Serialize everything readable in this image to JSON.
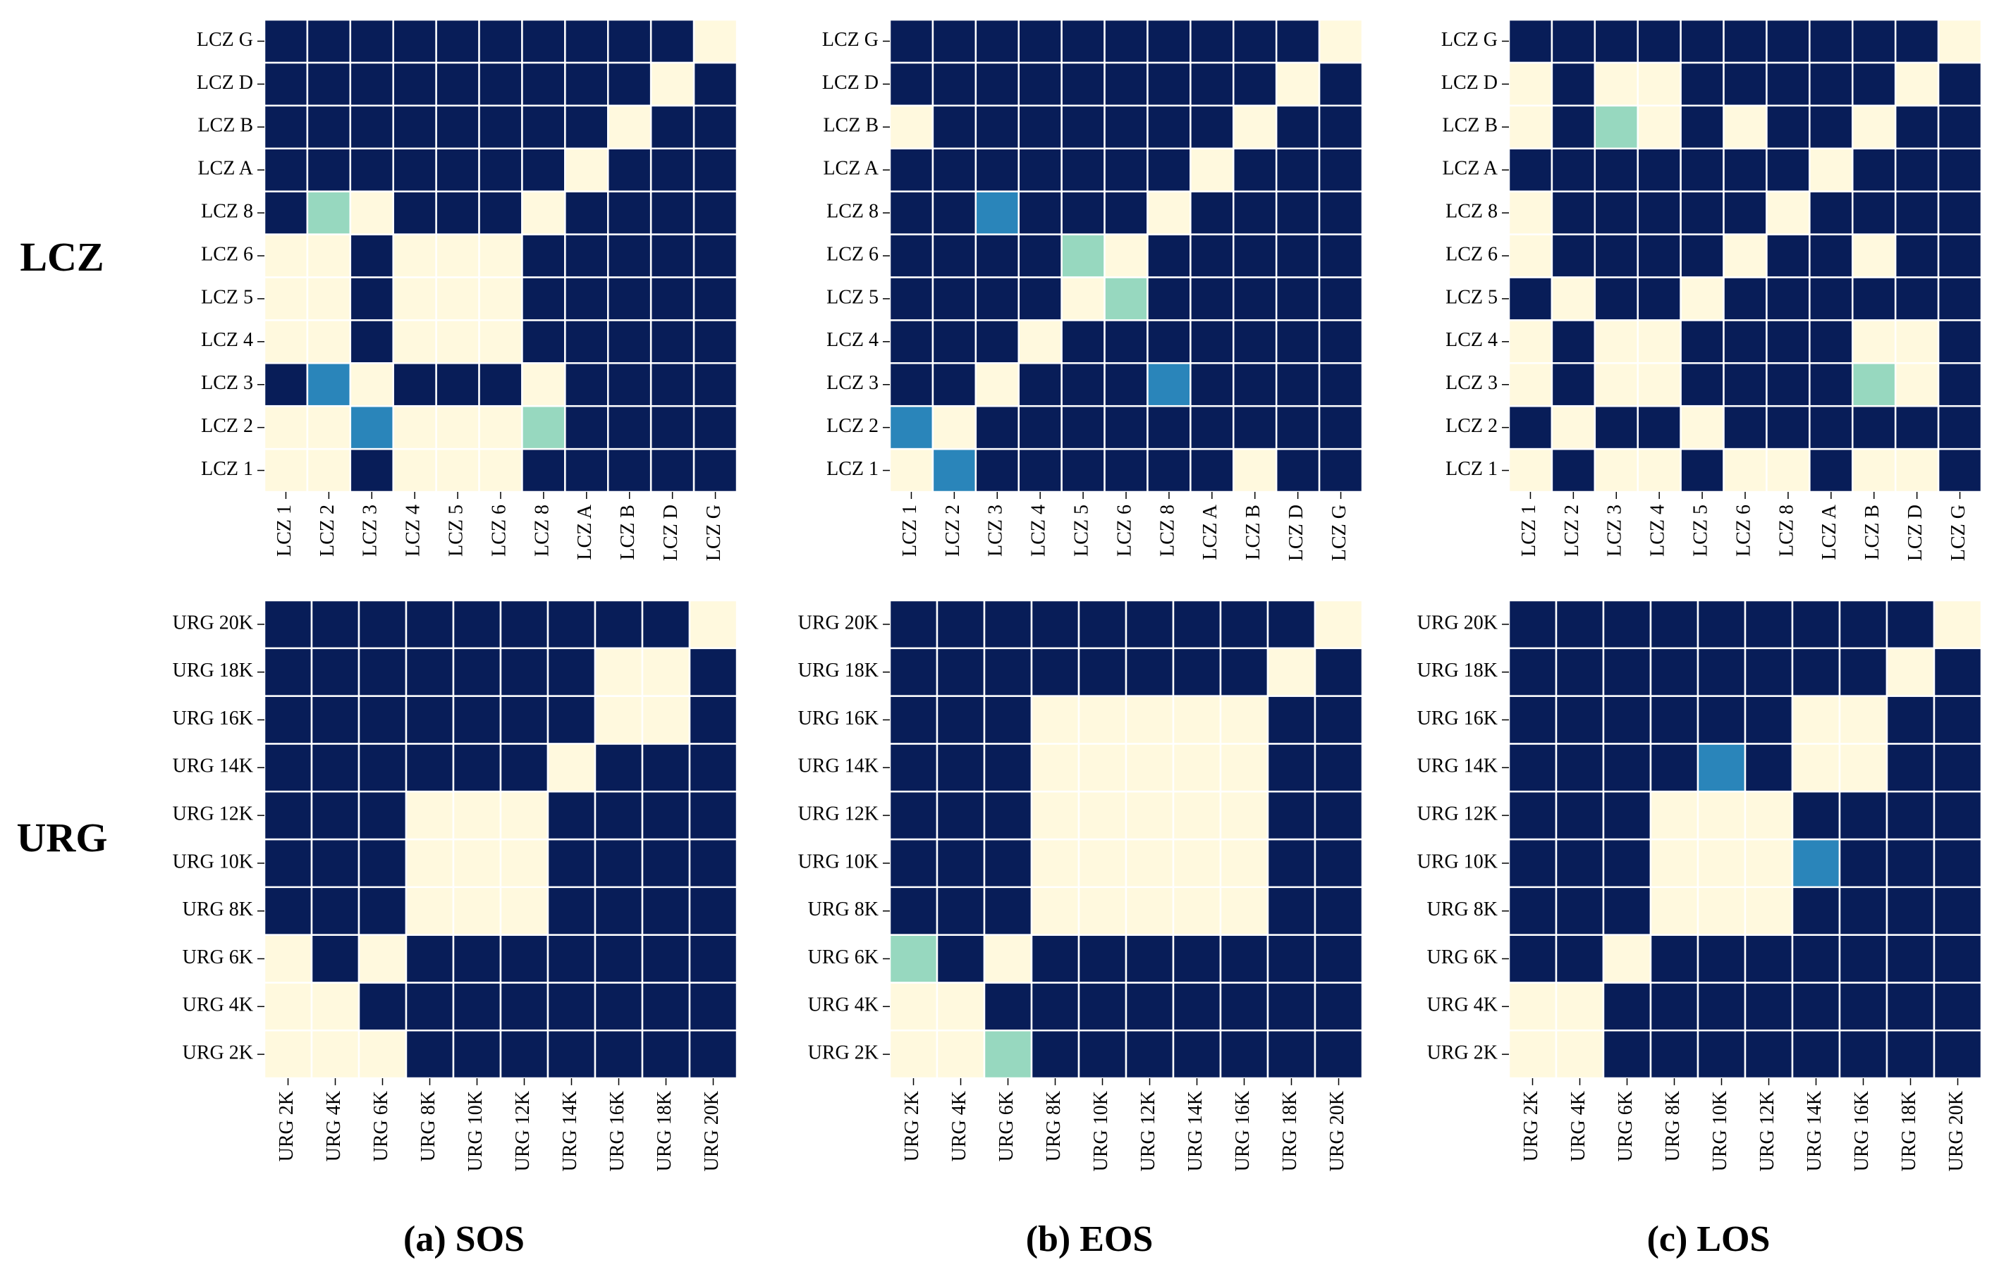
{
  "row_titles": [
    "LCZ",
    "URG"
  ],
  "panel_titles": [
    "(a) SOS",
    "(b) EOS",
    "(c) LOS"
  ],
  "colors": {
    "level_0": "#081d58",
    "level_1": "#2a85ba",
    "level_2": "#97d8bf",
    "level_3": "#fff9de",
    "gridline": "#ffffff"
  },
  "chart_data": [
    {
      "type": "heatmap",
      "group": "LCZ",
      "column": "(a) SOS",
      "x_labels": [
        "LCZ 1",
        "LCZ 2",
        "LCZ 3",
        "LCZ 4",
        "LCZ 5",
        "LCZ 6",
        "LCZ 8",
        "LCZ A",
        "LCZ B",
        "LCZ D",
        "LCZ G"
      ],
      "y_labels": [
        "LCZ 1",
        "LCZ 2",
        "LCZ 3",
        "LCZ 4",
        "LCZ 5",
        "LCZ 6",
        "LCZ 8",
        "LCZ A",
        "LCZ B",
        "LCZ D",
        "LCZ G"
      ],
      "values": [
        [
          3,
          3,
          0,
          3,
          3,
          3,
          0,
          0,
          0,
          0,
          0
        ],
        [
          3,
          3,
          1,
          3,
          3,
          3,
          2,
          0,
          0,
          0,
          0
        ],
        [
          0,
          1,
          3,
          0,
          0,
          0,
          3,
          0,
          0,
          0,
          0
        ],
        [
          3,
          3,
          0,
          3,
          3,
          3,
          0,
          0,
          0,
          0,
          0
        ],
        [
          3,
          3,
          0,
          3,
          3,
          3,
          0,
          0,
          0,
          0,
          0
        ],
        [
          3,
          3,
          0,
          3,
          3,
          3,
          0,
          0,
          0,
          0,
          0
        ],
        [
          0,
          2,
          3,
          0,
          0,
          0,
          3,
          0,
          0,
          0,
          0
        ],
        [
          0,
          0,
          0,
          0,
          0,
          0,
          0,
          3,
          0,
          0,
          0
        ],
        [
          0,
          0,
          0,
          0,
          0,
          0,
          0,
          0,
          3,
          0,
          0
        ],
        [
          0,
          0,
          0,
          0,
          0,
          0,
          0,
          0,
          0,
          3,
          0
        ],
        [
          0,
          0,
          0,
          0,
          0,
          0,
          0,
          0,
          0,
          0,
          3
        ]
      ]
    },
    {
      "type": "heatmap",
      "group": "LCZ",
      "column": "(b) EOS",
      "x_labels": [
        "LCZ 1",
        "LCZ 2",
        "LCZ 3",
        "LCZ 4",
        "LCZ 5",
        "LCZ 6",
        "LCZ 8",
        "LCZ A",
        "LCZ B",
        "LCZ D",
        "LCZ G"
      ],
      "y_labels": [
        "LCZ 1",
        "LCZ 2",
        "LCZ 3",
        "LCZ 4",
        "LCZ 5",
        "LCZ 6",
        "LCZ 8",
        "LCZ A",
        "LCZ B",
        "LCZ D",
        "LCZ G"
      ],
      "values": [
        [
          3,
          1,
          0,
          0,
          0,
          0,
          0,
          0,
          3,
          0,
          0
        ],
        [
          1,
          3,
          0,
          0,
          0,
          0,
          0,
          0,
          0,
          0,
          0
        ],
        [
          0,
          0,
          3,
          0,
          0,
          0,
          1,
          0,
          0,
          0,
          0
        ],
        [
          0,
          0,
          0,
          3,
          0,
          0,
          0,
          0,
          0,
          0,
          0
        ],
        [
          0,
          0,
          0,
          0,
          3,
          2,
          0,
          0,
          0,
          0,
          0
        ],
        [
          0,
          0,
          0,
          0,
          2,
          3,
          0,
          0,
          0,
          0,
          0
        ],
        [
          0,
          0,
          1,
          0,
          0,
          0,
          3,
          0,
          0,
          0,
          0
        ],
        [
          0,
          0,
          0,
          0,
          0,
          0,
          0,
          3,
          0,
          0,
          0
        ],
        [
          3,
          0,
          0,
          0,
          0,
          0,
          0,
          0,
          3,
          0,
          0
        ],
        [
          0,
          0,
          0,
          0,
          0,
          0,
          0,
          0,
          0,
          3,
          0
        ],
        [
          0,
          0,
          0,
          0,
          0,
          0,
          0,
          0,
          0,
          0,
          3
        ]
      ]
    },
    {
      "type": "heatmap",
      "group": "LCZ",
      "column": "(c) LOS",
      "x_labels": [
        "LCZ 1",
        "LCZ 2",
        "LCZ 3",
        "LCZ 4",
        "LCZ 5",
        "LCZ 6",
        "LCZ 8",
        "LCZ A",
        "LCZ B",
        "LCZ D",
        "LCZ G"
      ],
      "y_labels": [
        "LCZ 1",
        "LCZ 2",
        "LCZ 3",
        "LCZ 4",
        "LCZ 5",
        "LCZ 6",
        "LCZ 8",
        "LCZ A",
        "LCZ B",
        "LCZ D",
        "LCZ G"
      ],
      "values": [
        [
          3,
          0,
          3,
          3,
          0,
          3,
          3,
          0,
          3,
          3,
          0
        ],
        [
          0,
          3,
          0,
          0,
          3,
          0,
          0,
          0,
          0,
          0,
          0
        ],
        [
          3,
          0,
          3,
          3,
          0,
          0,
          0,
          0,
          2,
          3,
          0
        ],
        [
          3,
          0,
          3,
          3,
          0,
          0,
          0,
          0,
          3,
          3,
          0
        ],
        [
          0,
          3,
          0,
          0,
          3,
          0,
          0,
          0,
          0,
          0,
          0
        ],
        [
          3,
          0,
          0,
          0,
          0,
          3,
          0,
          0,
          3,
          0,
          0
        ],
        [
          3,
          0,
          0,
          0,
          0,
          0,
          3,
          0,
          0,
          0,
          0
        ],
        [
          0,
          0,
          0,
          0,
          0,
          0,
          0,
          3,
          0,
          0,
          0
        ],
        [
          3,
          0,
          2,
          3,
          0,
          3,
          0,
          0,
          3,
          0,
          0
        ],
        [
          3,
          0,
          3,
          3,
          0,
          0,
          0,
          0,
          0,
          3,
          0
        ],
        [
          0,
          0,
          0,
          0,
          0,
          0,
          0,
          0,
          0,
          0,
          3
        ]
      ]
    },
    {
      "type": "heatmap",
      "group": "URG",
      "column": "(a) SOS",
      "x_labels": [
        "URG 2K",
        "URG 4K",
        "URG 6K",
        "URG 8K",
        "URG 10K",
        "URG 12K",
        "URG 14K",
        "URG 16K",
        "URG 18K",
        "URG 20K"
      ],
      "y_labels": [
        "URG 2K",
        "URG 4K",
        "URG 6K",
        "URG 8K",
        "URG 10K",
        "URG 12K",
        "URG 14K",
        "URG 16K",
        "URG 18K",
        "URG 20K"
      ],
      "values": [
        [
          3,
          3,
          3,
          0,
          0,
          0,
          0,
          0,
          0,
          0
        ],
        [
          3,
          3,
          0,
          0,
          0,
          0,
          0,
          0,
          0,
          0
        ],
        [
          3,
          0,
          3,
          0,
          0,
          0,
          0,
          0,
          0,
          0
        ],
        [
          0,
          0,
          0,
          3,
          3,
          3,
          0,
          0,
          0,
          0
        ],
        [
          0,
          0,
          0,
          3,
          3,
          3,
          0,
          0,
          0,
          0
        ],
        [
          0,
          0,
          0,
          3,
          3,
          3,
          0,
          0,
          0,
          0
        ],
        [
          0,
          0,
          0,
          0,
          0,
          0,
          3,
          0,
          0,
          0
        ],
        [
          0,
          0,
          0,
          0,
          0,
          0,
          0,
          3,
          3,
          0
        ],
        [
          0,
          0,
          0,
          0,
          0,
          0,
          0,
          3,
          3,
          0
        ],
        [
          0,
          0,
          0,
          0,
          0,
          0,
          0,
          0,
          0,
          3
        ]
      ]
    },
    {
      "type": "heatmap",
      "group": "URG",
      "column": "(b) EOS",
      "x_labels": [
        "URG 2K",
        "URG 4K",
        "URG 6K",
        "URG 8K",
        "URG 10K",
        "URG 12K",
        "URG 14K",
        "URG 16K",
        "URG 18K",
        "URG 20K"
      ],
      "y_labels": [
        "URG 2K",
        "URG 4K",
        "URG 6K",
        "URG 8K",
        "URG 10K",
        "URG 12K",
        "URG 14K",
        "URG 16K",
        "URG 18K",
        "URG 20K"
      ],
      "values": [
        [
          3,
          3,
          2,
          0,
          0,
          0,
          0,
          0,
          0,
          0
        ],
        [
          3,
          3,
          0,
          0,
          0,
          0,
          0,
          0,
          0,
          0
        ],
        [
          2,
          0,
          3,
          0,
          0,
          0,
          0,
          0,
          0,
          0
        ],
        [
          0,
          0,
          0,
          3,
          3,
          3,
          3,
          3,
          0,
          0
        ],
        [
          0,
          0,
          0,
          3,
          3,
          3,
          3,
          3,
          0,
          0
        ],
        [
          0,
          0,
          0,
          3,
          3,
          3,
          3,
          3,
          0,
          0
        ],
        [
          0,
          0,
          0,
          3,
          3,
          3,
          3,
          3,
          0,
          0
        ],
        [
          0,
          0,
          0,
          3,
          3,
          3,
          3,
          3,
          0,
          0
        ],
        [
          0,
          0,
          0,
          0,
          0,
          0,
          0,
          0,
          3,
          0
        ],
        [
          0,
          0,
          0,
          0,
          0,
          0,
          0,
          0,
          0,
          3
        ]
      ]
    },
    {
      "type": "heatmap",
      "group": "URG",
      "column": "(c) LOS",
      "x_labels": [
        "URG 2K",
        "URG 4K",
        "URG 6K",
        "URG 8K",
        "URG 10K",
        "URG 12K",
        "URG 14K",
        "URG 16K",
        "URG 18K",
        "URG 20K"
      ],
      "y_labels": [
        "URG 2K",
        "URG 4K",
        "URG 6K",
        "URG 8K",
        "URG 10K",
        "URG 12K",
        "URG 14K",
        "URG 16K",
        "URG 18K",
        "URG 20K"
      ],
      "values": [
        [
          3,
          3,
          0,
          0,
          0,
          0,
          0,
          0,
          0,
          0
        ],
        [
          3,
          3,
          0,
          0,
          0,
          0,
          0,
          0,
          0,
          0
        ],
        [
          0,
          0,
          3,
          0,
          0,
          0,
          0,
          0,
          0,
          0
        ],
        [
          0,
          0,
          0,
          3,
          3,
          3,
          0,
          0,
          0,
          0
        ],
        [
          0,
          0,
          0,
          3,
          3,
          3,
          1,
          0,
          0,
          0
        ],
        [
          0,
          0,
          0,
          3,
          3,
          3,
          0,
          0,
          0,
          0
        ],
        [
          0,
          0,
          0,
          0,
          1,
          0,
          3,
          3,
          0,
          0
        ],
        [
          0,
          0,
          0,
          0,
          0,
          0,
          3,
          3,
          0,
          0
        ],
        [
          0,
          0,
          0,
          0,
          0,
          0,
          0,
          0,
          3,
          0
        ],
        [
          0,
          0,
          0,
          0,
          0,
          0,
          0,
          0,
          0,
          3
        ]
      ]
    }
  ]
}
